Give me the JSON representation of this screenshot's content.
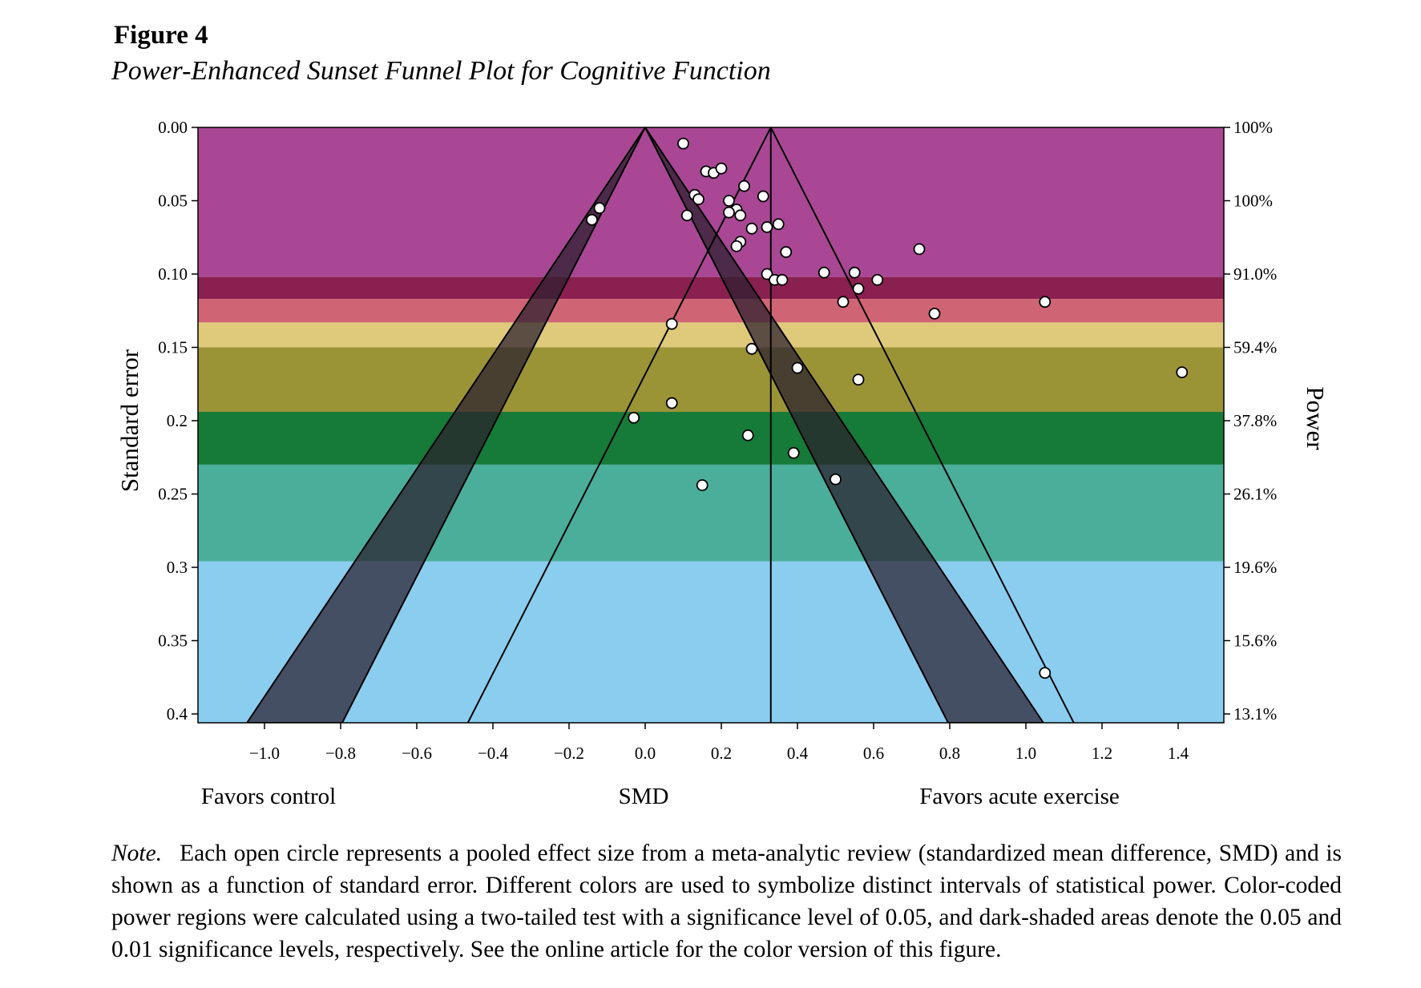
{
  "figure": {
    "label": "Figure 4",
    "title": "Power-Enhanced Sunset Funnel Plot for Cognitive Function",
    "note_label": "Note.",
    "note_text": "Each open circle represents a pooled effect size from a meta-analytic review (standardized mean difference, SMD) and is shown as a function of standard error. Different colors are used to symbolize distinct intervals of statistical power. Color-coded power regions were calculated using a two-tailed test with a significance level of 0.05, and dark-shaded areas denote the 0.05 and 0.01 significance levels, respectively. See the online article for the color version of this figure."
  },
  "chart_data": {
    "type": "scatter",
    "title": "",
    "xlabel": "SMD",
    "xlabel_left": "Favors control",
    "xlabel_right": "Favors acute exercise",
    "ylabel": "Standard error",
    "ylabel_right": "Power",
    "xlim": [
      -1.1,
      1.53
    ],
    "ylim": [
      0.0,
      0.4
    ],
    "y_reversed": true,
    "grid": false,
    "legend": "none",
    "x_ticks": [
      {
        "value": -1.0,
        "label": "−1.0"
      },
      {
        "value": -0.8,
        "label": "−0.8"
      },
      {
        "value": -0.6,
        "label": "−0.6"
      },
      {
        "value": -0.4,
        "label": "−0.4"
      },
      {
        "value": -0.2,
        "label": "−0.2"
      },
      {
        "value": 0.0,
        "label": "0.0"
      },
      {
        "value": 0.2,
        "label": "0.2"
      },
      {
        "value": 0.4,
        "label": "0.4"
      },
      {
        "value": 0.6,
        "label": "0.6"
      },
      {
        "value": 0.8,
        "label": "0.8"
      },
      {
        "value": 1.0,
        "label": "1.0"
      },
      {
        "value": 1.2,
        "label": "1.2"
      },
      {
        "value": 1.4,
        "label": "1.4"
      }
    ],
    "y_ticks": [
      {
        "value": 0.0,
        "label": "0.00"
      },
      {
        "value": 0.05,
        "label": "0.05"
      },
      {
        "value": 0.1,
        "label": "0.10"
      },
      {
        "value": 0.15,
        "label": "0.15"
      },
      {
        "value": 0.2,
        "label": "0.2"
      },
      {
        "value": 0.25,
        "label": "0.25"
      },
      {
        "value": 0.3,
        "label": "0.3"
      },
      {
        "value": 0.35,
        "label": "0.35"
      },
      {
        "value": 0.4,
        "label": "0.4"
      }
    ],
    "power_ticks": [
      {
        "value": 0.0,
        "label": "100%"
      },
      {
        "value": 0.05,
        "label": "100%"
      },
      {
        "value": 0.1,
        "label": "91.0%"
      },
      {
        "value": 0.15,
        "label": "59.4%"
      },
      {
        "value": 0.2,
        "label": "37.8%"
      },
      {
        "value": 0.25,
        "label": "26.1%"
      },
      {
        "value": 0.3,
        "label": "19.6%"
      },
      {
        "value": 0.35,
        "label": "15.6%"
      },
      {
        "value": 0.4,
        "label": "13.1%"
      }
    ],
    "power_bands": [
      {
        "se_from": 0.0,
        "se_to": 0.102,
        "color": "#a94795"
      },
      {
        "se_from": 0.102,
        "se_to": 0.117,
        "color": "#8a2050"
      },
      {
        "se_from": 0.117,
        "se_to": 0.133,
        "color": "#cf6474"
      },
      {
        "se_from": 0.133,
        "se_to": 0.15,
        "color": "#dfc97a"
      },
      {
        "se_from": 0.15,
        "se_to": 0.194,
        "color": "#9b9437"
      },
      {
        "se_from": 0.194,
        "se_to": 0.23,
        "color": "#167a38"
      },
      {
        "se_from": 0.23,
        "se_to": 0.296,
        "color": "#4aae9b"
      },
      {
        "se_from": 0.296,
        "se_to": 0.406,
        "color": "#8acdef"
      }
    ],
    "null_funnel": {
      "center": 0.0,
      "z_005": 1.96,
      "z_001": 2.576,
      "shade_color": "#2a1e2e"
    },
    "pooled_estimate": 0.33,
    "points": [
      {
        "x": 0.1,
        "y": 0.011
      },
      {
        "x": 0.16,
        "y": 0.03
      },
      {
        "x": 0.18,
        "y": 0.031
      },
      {
        "x": 0.2,
        "y": 0.028
      },
      {
        "x": 0.26,
        "y": 0.04
      },
      {
        "x": 0.31,
        "y": 0.047
      },
      {
        "x": 0.13,
        "y": 0.046
      },
      {
        "x": 0.14,
        "y": 0.049
      },
      {
        "x": 0.22,
        "y": 0.05
      },
      {
        "x": 0.24,
        "y": 0.056
      },
      {
        "x": 0.22,
        "y": 0.058
      },
      {
        "x": 0.25,
        "y": 0.06
      },
      {
        "x": 0.11,
        "y": 0.06
      },
      {
        "x": 0.28,
        "y": 0.069
      },
      {
        "x": 0.32,
        "y": 0.068
      },
      {
        "x": 0.35,
        "y": 0.066
      },
      {
        "x": -0.12,
        "y": 0.055
      },
      {
        "x": -0.14,
        "y": 0.063
      },
      {
        "x": 0.25,
        "y": 0.078
      },
      {
        "x": 0.24,
        "y": 0.081
      },
      {
        "x": 0.37,
        "y": 0.085
      },
      {
        "x": 0.72,
        "y": 0.083
      },
      {
        "x": 0.32,
        "y": 0.1
      },
      {
        "x": 0.34,
        "y": 0.104
      },
      {
        "x": 0.36,
        "y": 0.104
      },
      {
        "x": 0.47,
        "y": 0.099
      },
      {
        "x": 0.55,
        "y": 0.099
      },
      {
        "x": 0.61,
        "y": 0.104
      },
      {
        "x": 0.56,
        "y": 0.11
      },
      {
        "x": 0.52,
        "y": 0.119
      },
      {
        "x": 0.76,
        "y": 0.127
      },
      {
        "x": 1.05,
        "y": 0.119
      },
      {
        "x": 0.07,
        "y": 0.134
      },
      {
        "x": 0.28,
        "y": 0.151
      },
      {
        "x": 0.4,
        "y": 0.164
      },
      {
        "x": 0.56,
        "y": 0.172
      },
      {
        "x": 1.41,
        "y": 0.167
      },
      {
        "x": 0.07,
        "y": 0.188
      },
      {
        "x": -0.03,
        "y": 0.198
      },
      {
        "x": 0.27,
        "y": 0.21
      },
      {
        "x": 0.39,
        "y": 0.222
      },
      {
        "x": 0.5,
        "y": 0.24
      },
      {
        "x": 0.15,
        "y": 0.244
      },
      {
        "x": 1.05,
        "y": 0.372
      }
    ]
  }
}
